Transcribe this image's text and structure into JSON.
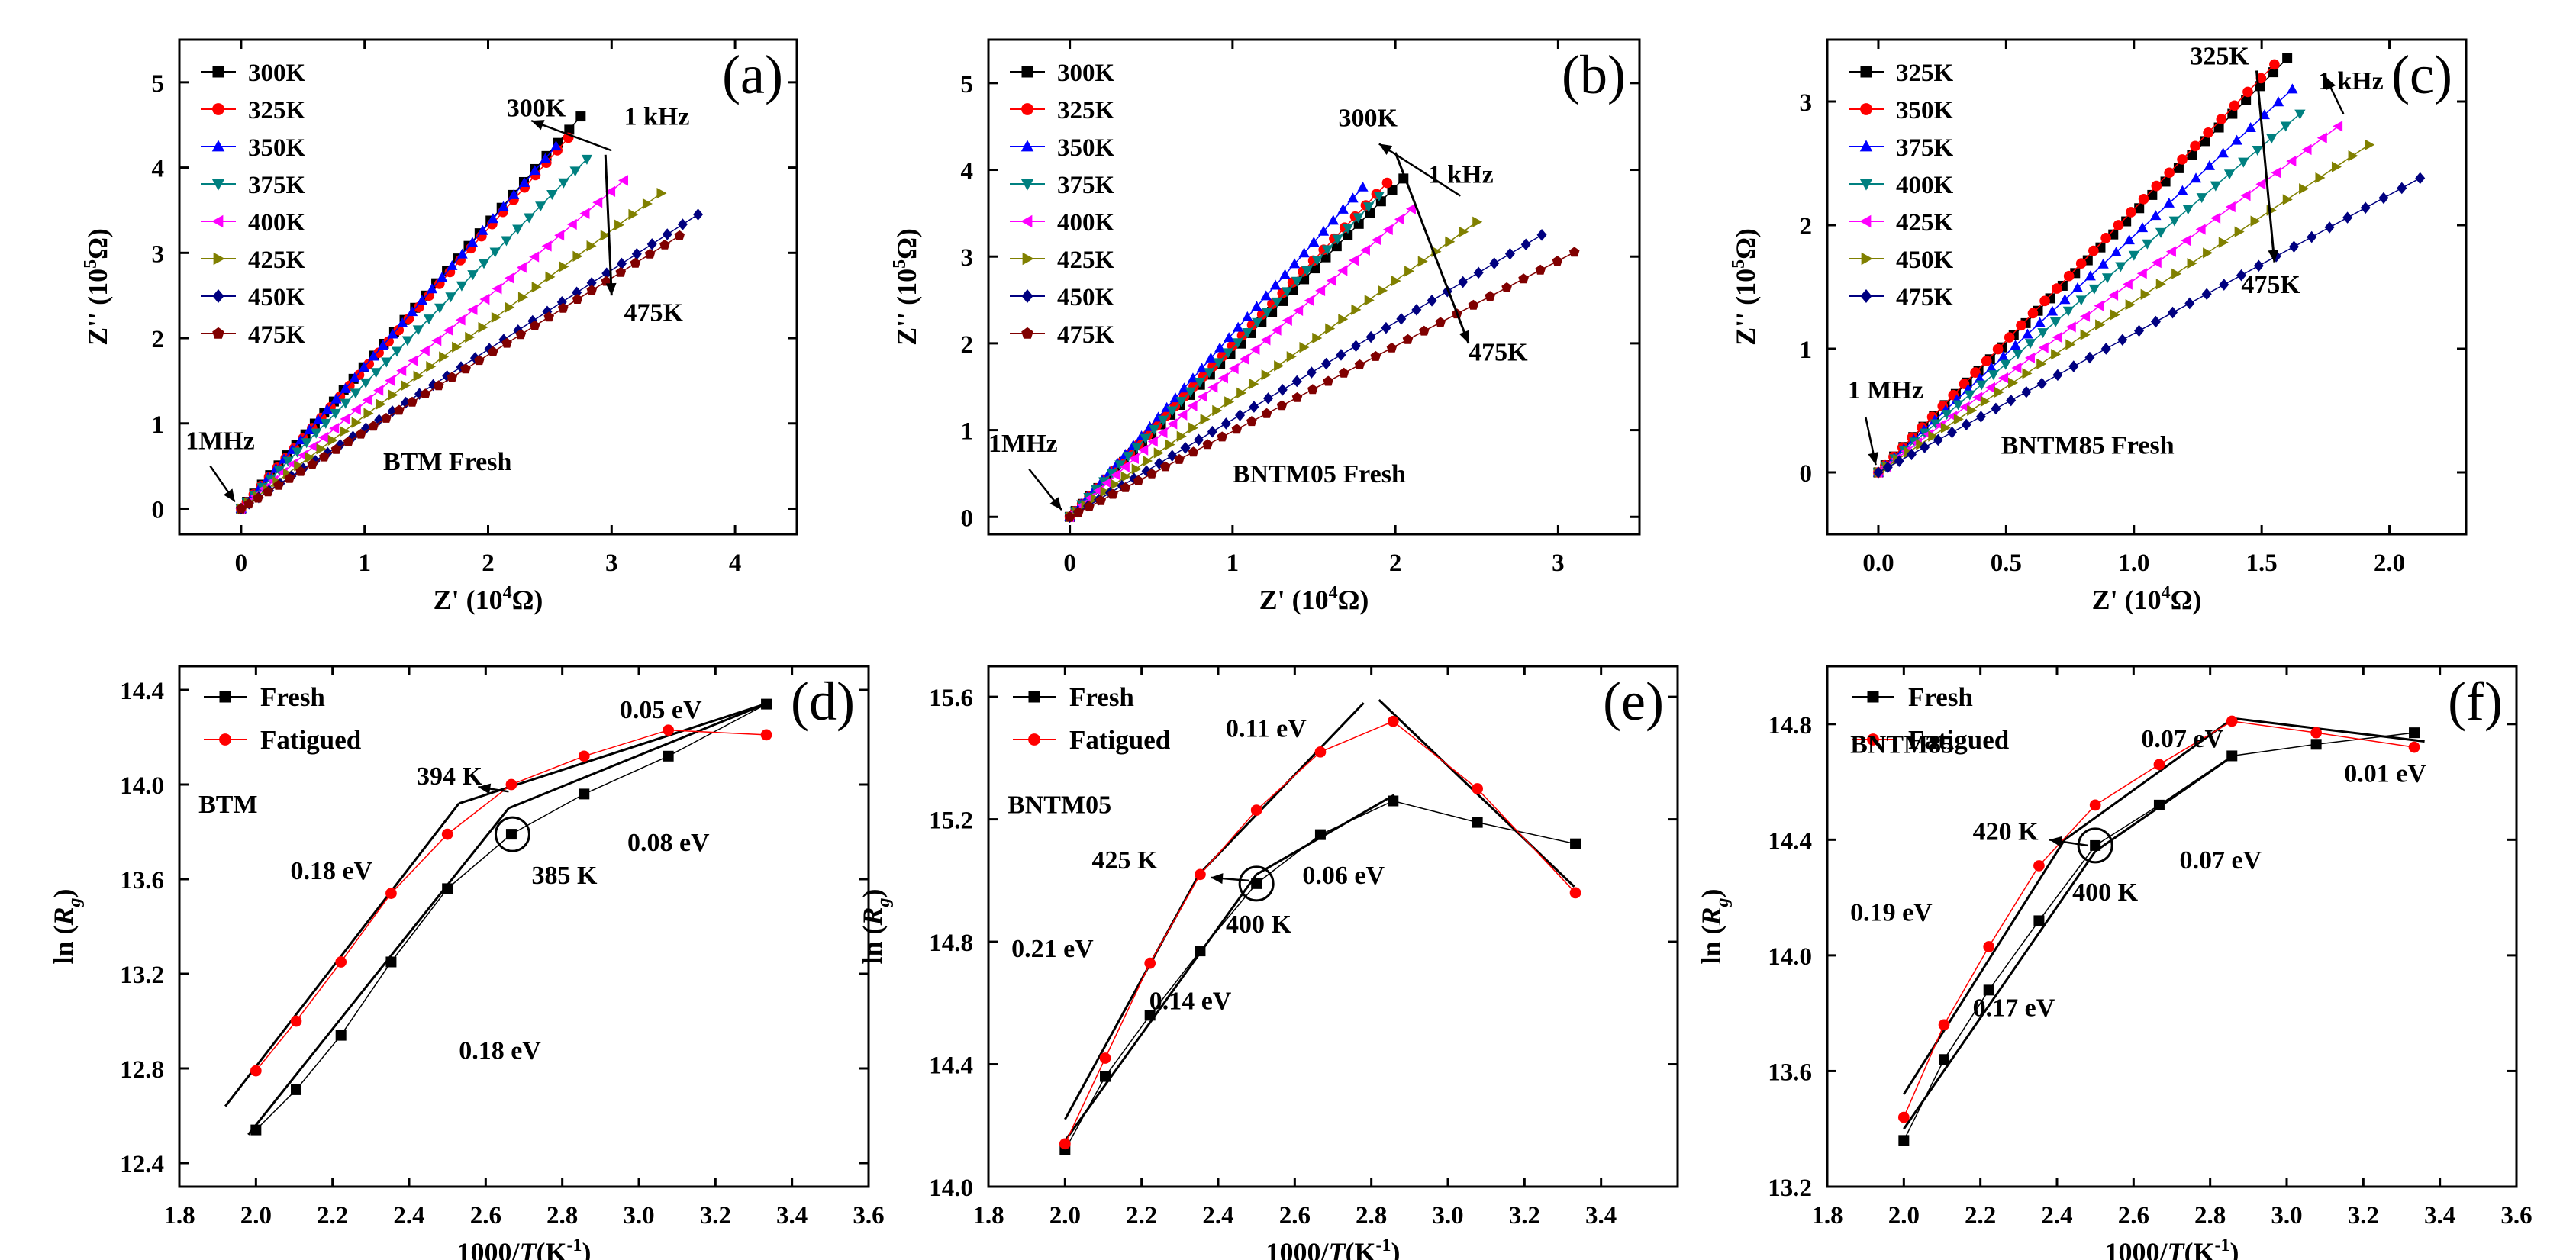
{
  "figure": {
    "alt": "Impedance spectra and Arrhenius plots"
  },
  "chart_data": [
    {
      "id": "a",
      "type": "scatter",
      "panel_label": "(a)",
      "xlabel_main": "Z' (10",
      "xlabel_sup": "4",
      "xlabel_end": "Ω)",
      "ylabel_main": "Z'' (10",
      "ylabel_sup": "5",
      "ylabel_end": "Ω)",
      "xlim": [
        -0.5,
        4.5
      ],
      "ylim": [
        -0.3,
        5.5
      ],
      "xticks": [
        0,
        1,
        2,
        3,
        4
      ],
      "xtick_labels": [
        "0",
        "1",
        "2",
        "3",
        "4"
      ],
      "yticks": [
        0,
        1,
        2,
        3,
        4,
        5
      ],
      "ytick_labels": [
        "0",
        "1",
        "2",
        "3",
        "4",
        "5"
      ],
      "series": [
        {
          "name": "300K",
          "color": "#000000",
          "marker": "square",
          "end": [
            2.75,
            4.6
          ]
        },
        {
          "name": "325K",
          "color": "#ff0000",
          "marker": "circle",
          "end": [
            2.65,
            4.35
          ]
        },
        {
          "name": "350K",
          "color": "#0000ff",
          "marker": "tri-up",
          "end": [
            2.55,
            4.25
          ]
        },
        {
          "name": "375K",
          "color": "#008080",
          "marker": "tri-down",
          "end": [
            2.8,
            4.1
          ]
        },
        {
          "name": "400K",
          "color": "#ff00ff",
          "marker": "tri-left",
          "end": [
            3.1,
            3.85
          ]
        },
        {
          "name": "425K",
          "color": "#808000",
          "marker": "tri-right",
          "end": [
            3.4,
            3.7
          ]
        },
        {
          "name": "450K",
          "color": "#000080",
          "marker": "diamond",
          "end": [
            3.7,
            3.45
          ]
        },
        {
          "name": "475K",
          "color": "#800000",
          "marker": "pentagon",
          "end": [
            3.55,
            3.2
          ]
        }
      ],
      "annotations": [
        {
          "text": "300K",
          "x": 2.15,
          "y": 4.6
        },
        {
          "text": "1 kHz",
          "x": 3.1,
          "y": 4.5
        },
        {
          "text": "475K",
          "x": 3.1,
          "y": 2.2
        },
        {
          "text": "1MHz",
          "x": -0.45,
          "y": 0.7
        },
        {
          "text": "BTM Fresh",
          "x": 1.15,
          "y": 0.45
        }
      ],
      "arrow": {
        "from": [
          3.0,
          4.2
        ],
        "to": [
          2.35,
          4.55
        ]
      },
      "line_arrow": {
        "from": [
          2.95,
          4.15
        ],
        "to": [
          3.0,
          2.5
        ]
      },
      "mhz_arrow": {
        "from": [
          -0.25,
          0.5
        ],
        "to": [
          -0.05,
          0.08
        ]
      }
    },
    {
      "id": "b",
      "type": "scatter",
      "panel_label": "(b)",
      "xlabel_main": "Z' (10",
      "xlabel_sup": "4",
      "xlabel_end": "Ω)",
      "ylabel_main": "Z'' (10",
      "ylabel_sup": "5",
      "ylabel_end": "Ω)",
      "xlim": [
        -0.5,
        3.5
      ],
      "ylim": [
        -0.2,
        5.5
      ],
      "xticks": [
        0,
        1,
        2,
        3
      ],
      "xtick_labels": [
        "0",
        "1",
        "2",
        "3"
      ],
      "yticks": [
        0,
        1,
        2,
        3,
        4,
        5
      ],
      "ytick_labels": [
        "0",
        "1",
        "2",
        "3",
        "4",
        "5"
      ],
      "series": [
        {
          "name": "300K",
          "color": "#000000",
          "marker": "square",
          "end": [
            2.05,
            3.9
          ]
        },
        {
          "name": "325K",
          "color": "#ff0000",
          "marker": "circle",
          "end": [
            1.95,
            3.85
          ]
        },
        {
          "name": "350K",
          "color": "#0000ff",
          "marker": "tri-up",
          "end": [
            1.8,
            3.8
          ]
        },
        {
          "name": "375K",
          "color": "#008080",
          "marker": "tri-down",
          "end": [
            1.9,
            3.7
          ]
        },
        {
          "name": "400K",
          "color": "#ff00ff",
          "marker": "tri-left",
          "end": [
            2.1,
            3.55
          ]
        },
        {
          "name": "425K",
          "color": "#808000",
          "marker": "tri-right",
          "end": [
            2.5,
            3.4
          ]
        },
        {
          "name": "450K",
          "color": "#000080",
          "marker": "diamond",
          "end": [
            2.9,
            3.25
          ]
        },
        {
          "name": "475K",
          "color": "#800000",
          "marker": "pentagon",
          "end": [
            3.1,
            3.05
          ]
        }
      ],
      "annotations": [
        {
          "text": "300K",
          "x": 1.65,
          "y": 4.5
        },
        {
          "text": "1 kHz",
          "x": 2.2,
          "y": 3.85
        },
        {
          "text": "475K",
          "x": 2.45,
          "y": 1.8
        },
        {
          "text": "1MHz",
          "x": -0.5,
          "y": 0.75
        },
        {
          "text": "BNTM05 Fresh",
          "x": 1.0,
          "y": 0.4
        }
      ],
      "arrow": {
        "from": [
          2.4,
          3.7
        ],
        "to": [
          1.9,
          4.3
        ]
      },
      "line_arrow": {
        "from": [
          2.0,
          4.2
        ],
        "to": [
          2.45,
          2.0
        ]
      },
      "mhz_arrow": {
        "from": [
          -0.25,
          0.55
        ],
        "to": [
          -0.05,
          0.08
        ]
      }
    },
    {
      "id": "c",
      "type": "scatter",
      "panel_label": "(c)",
      "xlabel_main": "Z' (10",
      "xlabel_sup": "4",
      "xlabel_end": "Ω)",
      "ylabel_main": "Z'' (10",
      "ylabel_sup": "5",
      "ylabel_end": "Ω)",
      "xlim": [
        -0.2,
        2.3
      ],
      "ylim": [
        -0.5,
        3.5
      ],
      "xticks": [
        0.0,
        0.5,
        1.0,
        1.5,
        2.0
      ],
      "xtick_labels": [
        "0.0",
        "0.5",
        "1.0",
        "1.5",
        "2.0"
      ],
      "yticks": [
        0,
        1,
        2,
        3
      ],
      "ytick_labels": [
        "0",
        "1",
        "2",
        "3"
      ],
      "series": [
        {
          "name": "325K",
          "color": "#000000",
          "marker": "square",
          "end": [
            1.6,
            3.35
          ]
        },
        {
          "name": "350K",
          "color": "#ff0000",
          "marker": "circle",
          "end": [
            1.55,
            3.3
          ]
        },
        {
          "name": "375K",
          "color": "#0000ff",
          "marker": "tri-up",
          "end": [
            1.62,
            3.1
          ]
        },
        {
          "name": "400K",
          "color": "#008080",
          "marker": "tri-down",
          "end": [
            1.65,
            2.9
          ]
        },
        {
          "name": "425K",
          "color": "#ff00ff",
          "marker": "tri-left",
          "end": [
            1.8,
            2.8
          ]
        },
        {
          "name": "450K",
          "color": "#808000",
          "marker": "tri-right",
          "end": [
            1.92,
            2.65
          ]
        },
        {
          "name": "475K",
          "color": "#000080",
          "marker": "diamond",
          "end": [
            2.12,
            2.38
          ]
        }
      ],
      "annotations": [
        {
          "text": "325K",
          "x": 1.22,
          "y": 3.3
        },
        {
          "text": "1 kHz",
          "x": 1.72,
          "y": 3.1
        },
        {
          "text": "475K",
          "x": 1.42,
          "y": 1.45
        },
        {
          "text": "1 MHz",
          "x": -0.12,
          "y": 0.6
        },
        {
          "text": "BNTM85 Fresh",
          "x": 0.48,
          "y": 0.15
        }
      ],
      "arrow": {
        "from": [
          1.82,
          2.9
        ],
        "to": [
          1.75,
          3.2
        ]
      },
      "line_arrow": {
        "from": [
          1.48,
          3.25
        ],
        "to": [
          1.55,
          1.7
        ]
      },
      "mhz_arrow": {
        "from": [
          -0.05,
          0.45
        ],
        "to": [
          -0.01,
          0.06
        ]
      }
    },
    {
      "id": "d",
      "type": "line",
      "panel_label": "(d)",
      "xlabel_main": "1000/",
      "xlabel_it": "T",
      "xlabel_end": "(K",
      "xlabel_sup": "-1",
      "xlabel_close": ")",
      "ylabel_main": "ln (",
      "ylabel_it": "R",
      "ylabel_sub": "g",
      "ylabel_close": ")",
      "xlim": [
        1.8,
        3.6
      ],
      "ylim": [
        12.3,
        14.5
      ],
      "xticks": [
        1.8,
        2.0,
        2.2,
        2.4,
        2.6,
        2.8,
        3.0,
        3.2,
        3.4,
        3.6
      ],
      "xtick_labels": [
        "1.8",
        "2.0",
        "2.2",
        "2.4",
        "2.6",
        "2.8",
        "3.0",
        "3.2",
        "3.4",
        "3.6"
      ],
      "yticks": [
        12.4,
        12.8,
        13.2,
        13.6,
        14.0,
        14.4
      ],
      "ytick_labels": [
        "12.4",
        "12.8",
        "13.2",
        "13.6",
        "14.0",
        "14.4"
      ],
      "series": [
        {
          "name": "Fresh",
          "color": "#000000",
          "marker": "square",
          "x": [
            2.0,
            2.105,
            2.222,
            2.353,
            2.5,
            2.667,
            2.857,
            3.077,
            3.333
          ],
          "y": [
            12.54,
            12.71,
            12.94,
            13.25,
            13.56,
            13.79,
            13.96,
            14.12,
            14.34
          ]
        },
        {
          "name": "Fatigued",
          "color": "#ff0000",
          "marker": "circle",
          "x": [
            2.0,
            2.105,
            2.222,
            2.353,
            2.5,
            2.667,
            2.857,
            3.077,
            3.333
          ],
          "y": [
            12.79,
            13.0,
            13.25,
            13.54,
            13.79,
            14.0,
            14.12,
            14.23,
            14.21
          ]
        }
      ],
      "fit_lines": [
        [
          [
            1.92,
            12.64
          ],
          [
            2.53,
            13.92
          ]
        ],
        [
          [
            2.53,
            13.92
          ],
          [
            3.33,
            14.34
          ]
        ],
        [
          [
            1.98,
            12.52
          ],
          [
            2.66,
            13.9
          ]
        ],
        [
          [
            2.66,
            13.9
          ],
          [
            3.33,
            14.34
          ]
        ]
      ],
      "circles": [
        [
          2.67,
          13.79
        ]
      ],
      "annotations": [
        {
          "text": "BTM",
          "x": 1.85,
          "y": 13.88
        },
        {
          "text": "0.05 eV",
          "x": 2.95,
          "y": 14.28
        },
        {
          "text": "394 K",
          "x": 2.42,
          "y": 14.0
        },
        {
          "text": "0.08 eV",
          "x": 2.97,
          "y": 13.72
        },
        {
          "text": "0.18 eV",
          "x": 2.09,
          "y": 13.6
        },
        {
          "text": "385 K",
          "x": 2.72,
          "y": 13.58
        },
        {
          "text": "0.18 eV",
          "x": 2.53,
          "y": 12.84
        }
      ],
      "arrow": {
        "from": [
          2.66,
          13.97
        ],
        "to": [
          2.58,
          13.99
        ]
      }
    },
    {
      "id": "e",
      "type": "line",
      "panel_label": "(e)",
      "xlabel_main": "1000/",
      "xlabel_it": "T",
      "xlabel_end": "(K",
      "xlabel_sup": "-1",
      "xlabel_close": ")",
      "ylabel_main": "ln (",
      "ylabel_it": "R",
      "ylabel_sub": "g",
      "ylabel_close": ")",
      "xlim": [
        1.8,
        3.6
      ],
      "ylim": [
        14.0,
        15.7
      ],
      "xticks": [
        1.8,
        2.0,
        2.2,
        2.4,
        2.6,
        2.8,
        3.0,
        3.2,
        3.4
      ],
      "xtick_labels": [
        "1.8",
        "2.0",
        "2.2",
        "2.4",
        "2.6",
        "2.8",
        "3.0",
        "3.2",
        "3.4"
      ],
      "yticks": [
        14.0,
        14.4,
        14.8,
        15.2,
        15.6
      ],
      "ytick_labels": [
        "14.0",
        "14.4",
        "14.8",
        "15.2",
        "15.6"
      ],
      "series": [
        {
          "name": "Fresh",
          "color": "#000000",
          "marker": "square",
          "x": [
            2.0,
            2.105,
            2.222,
            2.353,
            2.5,
            2.667,
            2.857,
            3.077,
            3.333
          ],
          "y": [
            14.12,
            14.36,
            14.56,
            14.77,
            14.99,
            15.15,
            15.26,
            15.19,
            15.12
          ]
        },
        {
          "name": "Fatigued",
          "color": "#ff0000",
          "marker": "circle",
          "x": [
            2.0,
            2.105,
            2.222,
            2.353,
            2.5,
            2.667,
            2.857,
            3.077,
            3.333
          ],
          "y": [
            14.14,
            14.42,
            14.73,
            15.02,
            15.23,
            15.42,
            15.52,
            15.3,
            14.96
          ]
        }
      ],
      "fit_lines": [
        [
          [
            2.0,
            14.22
          ],
          [
            2.35,
            15.02
          ]
        ],
        [
          [
            2.35,
            15.02
          ],
          [
            2.78,
            15.58
          ]
        ],
        [
          [
            2.82,
            15.59
          ],
          [
            3.33,
            14.98
          ]
        ],
        [
          [
            2.0,
            14.15
          ],
          [
            2.5,
            15.02
          ]
        ],
        [
          [
            2.5,
            15.02
          ],
          [
            2.86,
            15.28
          ]
        ]
      ],
      "circles": [
        [
          2.5,
          14.99
        ]
      ],
      "annotations": [
        {
          "text": "BNTM05",
          "x": 1.85,
          "y": 15.22
        },
        {
          "text": "0.11 eV",
          "x": 2.42,
          "y": 15.47
        },
        {
          "text": "425 K",
          "x": 2.07,
          "y": 15.04
        },
        {
          "text": "0.06 eV",
          "x": 2.62,
          "y": 14.99
        },
        {
          "text": "0.21 eV",
          "x": 1.86,
          "y": 14.75
        },
        {
          "text": "400 K",
          "x": 2.42,
          "y": 14.83
        },
        {
          "text": "0.14 eV",
          "x": 2.22,
          "y": 14.58
        }
      ],
      "arrow": {
        "from": [
          2.48,
          15.0
        ],
        "to": [
          2.38,
          15.01
        ]
      }
    },
    {
      "id": "f",
      "type": "line",
      "panel_label": "(f)",
      "xlabel_main": "1000/",
      "xlabel_it": "T",
      "xlabel_end": "(K",
      "xlabel_sup": "-1",
      "xlabel_close": ")",
      "ylabel_main": "ln (",
      "ylabel_it": "R",
      "ylabel_sub": "g",
      "ylabel_close": ")",
      "xlim": [
        1.8,
        3.6
      ],
      "ylim": [
        13.2,
        15.0
      ],
      "xticks": [
        1.8,
        2.0,
        2.2,
        2.4,
        2.6,
        2.8,
        3.0,
        3.2,
        3.4,
        3.6
      ],
      "xtick_labels": [
        "1.8",
        "2.0",
        "2.2",
        "2.4",
        "2.6",
        "2.8",
        "3.0",
        "3.2",
        "3.4",
        "3.6"
      ],
      "yticks": [
        13.2,
        13.6,
        14.0,
        14.4,
        14.8
      ],
      "ytick_labels": [
        "13.2",
        "13.6",
        "14.0",
        "14.4",
        "14.8"
      ],
      "series": [
        {
          "name": "Fresh",
          "color": "#000000",
          "marker": "square",
          "x": [
            2.0,
            2.105,
            2.222,
            2.353,
            2.5,
            2.667,
            2.857,
            3.077,
            3.333
          ],
          "y": [
            13.36,
            13.64,
            13.88,
            14.12,
            14.38,
            14.52,
            14.69,
            14.73,
            14.77
          ]
        },
        {
          "name": "Fatigued",
          "color": "#ff0000",
          "marker": "circle",
          "x": [
            2.0,
            2.105,
            2.222,
            2.353,
            2.5,
            2.667,
            2.857,
            3.077,
            3.333
          ],
          "y": [
            13.44,
            13.76,
            14.03,
            14.31,
            14.52,
            14.66,
            14.81,
            14.77,
            14.72
          ]
        }
      ],
      "fit_lines": [
        [
          [
            2.0,
            13.52
          ],
          [
            2.42,
            14.4
          ]
        ],
        [
          [
            2.42,
            14.4
          ],
          [
            2.86,
            14.82
          ]
        ],
        [
          [
            2.86,
            14.82
          ],
          [
            3.36,
            14.74
          ]
        ],
        [
          [
            2.0,
            13.4
          ],
          [
            2.5,
            14.36
          ]
        ],
        [
          [
            2.5,
            14.36
          ],
          [
            2.86,
            14.69
          ]
        ]
      ],
      "circles": [
        [
          2.5,
          14.38
        ]
      ],
      "annotations": [
        {
          "text": "BNTM85",
          "x": 1.86,
          "y": 14.7
        },
        {
          "text": "0.07 eV",
          "x": 2.62,
          "y": 14.72
        },
        {
          "text": "420 K",
          "x": 2.18,
          "y": 14.4
        },
        {
          "text": "0.07 eV",
          "x": 2.72,
          "y": 14.3
        },
        {
          "text": "0.19 eV",
          "x": 1.86,
          "y": 14.12
        },
        {
          "text": "400 K",
          "x": 2.44,
          "y": 14.19
        },
        {
          "text": "0.17 eV",
          "x": 2.18,
          "y": 13.79
        },
        {
          "text": "0.01 eV",
          "x": 3.15,
          "y": 14.6
        }
      ],
      "arrow": {
        "from": [
          2.48,
          14.38
        ],
        "to": [
          2.38,
          14.4
        ]
      }
    }
  ]
}
